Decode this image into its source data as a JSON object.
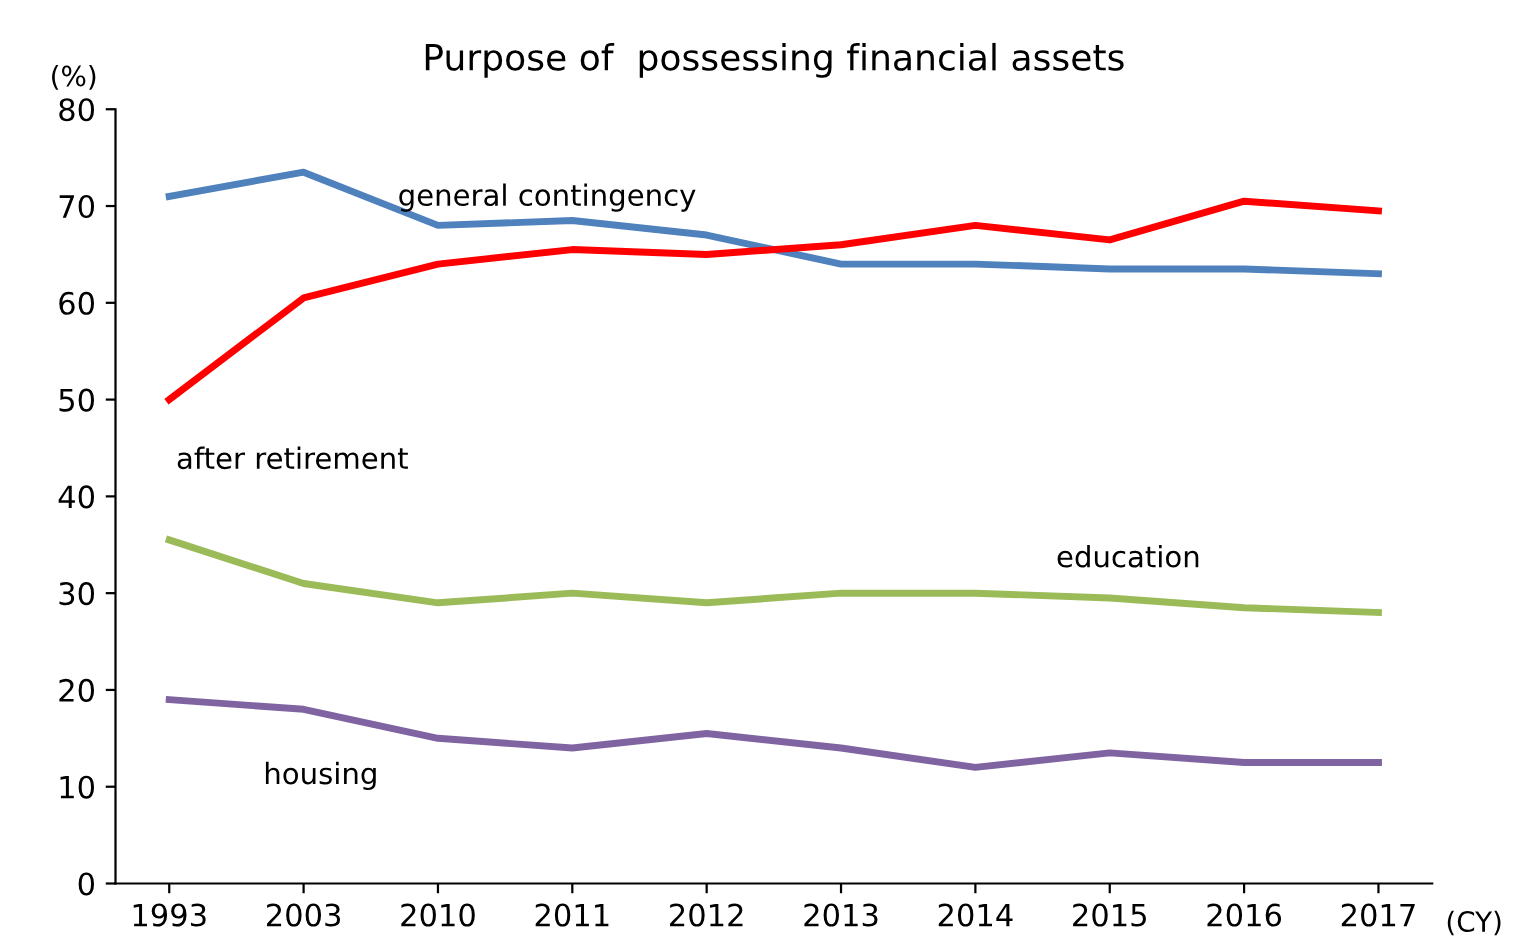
{
  "chart_data": {
    "type": "line",
    "title": "Purpose of  possessing financial assets",
    "ylabel": "(%)",
    "xlabel": "(CY)",
    "categories": [
      "1993",
      "2003",
      "2010",
      "2011",
      "2012",
      "2013",
      "2014",
      "2015",
      "2016",
      "2017"
    ],
    "series": [
      {
        "name": "general contingency",
        "color": "#4f81bd",
        "values": [
          71,
          73.5,
          68,
          68.5,
          67,
          64,
          64,
          63.5,
          63.5,
          63
        ]
      },
      {
        "name": "after retirement",
        "color": "#ff0000",
        "values": [
          50,
          60.5,
          64,
          65.5,
          65,
          66,
          68,
          66.5,
          70.5,
          69.5
        ]
      },
      {
        "name": "education",
        "color": "#9bbb59",
        "values": [
          35.5,
          31,
          29,
          30,
          29,
          30,
          30,
          29.5,
          28.5,
          28
        ]
      },
      {
        "name": "housing",
        "color": "#8064a2",
        "values": [
          19,
          18,
          15,
          14,
          15.5,
          14,
          12,
          13.5,
          12.5,
          12.5
        ]
      }
    ],
    "ylim": [
      0,
      80
    ],
    "yticks": [
      0,
      10,
      20,
      30,
      40,
      50,
      60,
      70,
      80
    ],
    "grid": false,
    "legend": false,
    "marker": "none",
    "line_style": "solid"
  }
}
